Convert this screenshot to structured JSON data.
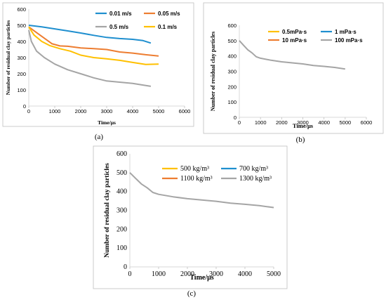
{
  "chart_data": [
    {
      "id": "a",
      "type": "line",
      "caption": "(a)",
      "xlabel": "Time/μs",
      "ylabel": "Number of residual clay particles",
      "xlim": [
        0,
        6000
      ],
      "ylim": [
        0,
        600
      ],
      "xticks": [
        0,
        1000,
        2000,
        3000,
        4000,
        5000,
        6000
      ],
      "yticks": [
        0,
        100,
        200,
        300,
        400,
        500,
        600
      ],
      "legend": "top-right",
      "series": [
        {
          "name": "0.01 m/s",
          "color": "#1f8fcf",
          "x": [
            0,
            500,
            1000,
            1500,
            2000,
            2500,
            3000,
            3500,
            4000,
            4400,
            4700
          ],
          "y": [
            500,
            490,
            478,
            465,
            452,
            438,
            425,
            418,
            413,
            405,
            390
          ]
        },
        {
          "name": "0.05 m/s",
          "color": "#ed7d31",
          "x": [
            0,
            300,
            600,
            900,
            1200,
            1500,
            2000,
            2500,
            3000,
            3500,
            4000,
            4500,
            5000
          ],
          "y": [
            490,
            455,
            420,
            385,
            372,
            370,
            360,
            355,
            350,
            335,
            328,
            318,
            310
          ]
        },
        {
          "name": "0.5 m/s",
          "color": "#a5a5a5",
          "x": [
            0,
            100,
            300,
            600,
            1000,
            1500,
            2000,
            2500,
            3000,
            3500,
            4000,
            4400,
            4700
          ],
          "y": [
            470,
            400,
            340,
            300,
            260,
            225,
            200,
            175,
            155,
            148,
            140,
            130,
            122
          ]
        },
        {
          "name": "0.1 m/s",
          "color": "#ffc000",
          "x": [
            0,
            200,
            500,
            800,
            1200,
            1600,
            2000,
            2500,
            3000,
            3500,
            4000,
            4500,
            5000
          ],
          "y": [
            490,
            440,
            400,
            375,
            355,
            340,
            315,
            300,
            292,
            283,
            270,
            258,
            260
          ]
        }
      ]
    },
    {
      "id": "b",
      "type": "line",
      "caption": "(b)",
      "xlabel": "Time/μs",
      "ylabel": "Number of residual clay particles",
      "xlim": [
        0,
        6000
      ],
      "ylim": [
        0,
        600
      ],
      "xticks": [
        0,
        1000,
        2000,
        3000,
        4000,
        5000,
        6000
      ],
      "yticks": [
        0,
        100,
        200,
        300,
        400,
        500,
        600
      ],
      "legend": "top-right",
      "series": [
        {
          "name": "0.5mPa·s",
          "color": "#ffc000",
          "x": [],
          "y": []
        },
        {
          "name": "1 mPa·s",
          "color": "#1f8fcf",
          "x": [],
          "y": []
        },
        {
          "name": "10 mPa·s",
          "color": "#ed7d31",
          "x": [],
          "y": []
        },
        {
          "name": "100 mPa·s",
          "color": "#a5a5a5",
          "x": [
            0,
            200,
            400,
            600,
            800,
            1000,
            1500,
            2000,
            2500,
            3000,
            3500,
            4000,
            4500,
            5000
          ],
          "y": [
            500,
            470,
            440,
            420,
            395,
            385,
            372,
            362,
            355,
            348,
            338,
            332,
            325,
            315
          ]
        }
      ]
    },
    {
      "id": "c",
      "type": "line",
      "caption": "(c)",
      "xlabel": "Time/μs",
      "ylabel": "Number of residual clay particles",
      "xlim": [
        0,
        5000
      ],
      "ylim": [
        0,
        600
      ],
      "xticks": [
        0,
        1000,
        2000,
        3000,
        4000,
        5000
      ],
      "yticks": [
        0,
        100,
        200,
        300,
        400,
        500,
        600
      ],
      "legend": "top",
      "series": [
        {
          "name": "500 kg/m³",
          "color": "#ffc000",
          "x": [],
          "y": []
        },
        {
          "name": "700 kg/m³",
          "color": "#1f8fcf",
          "x": [],
          "y": []
        },
        {
          "name": "1100 kg/m³",
          "color": "#ed7d31",
          "x": [],
          "y": []
        },
        {
          "name": "1300 kg/m³",
          "color": "#a5a5a5",
          "x": [
            0,
            200,
            400,
            600,
            800,
            1000,
            1500,
            2000,
            2500,
            3000,
            3500,
            4000,
            4500,
            5000
          ],
          "y": [
            500,
            470,
            440,
            420,
            395,
            385,
            372,
            362,
            355,
            348,
            338,
            332,
            325,
            315
          ]
        }
      ]
    }
  ]
}
